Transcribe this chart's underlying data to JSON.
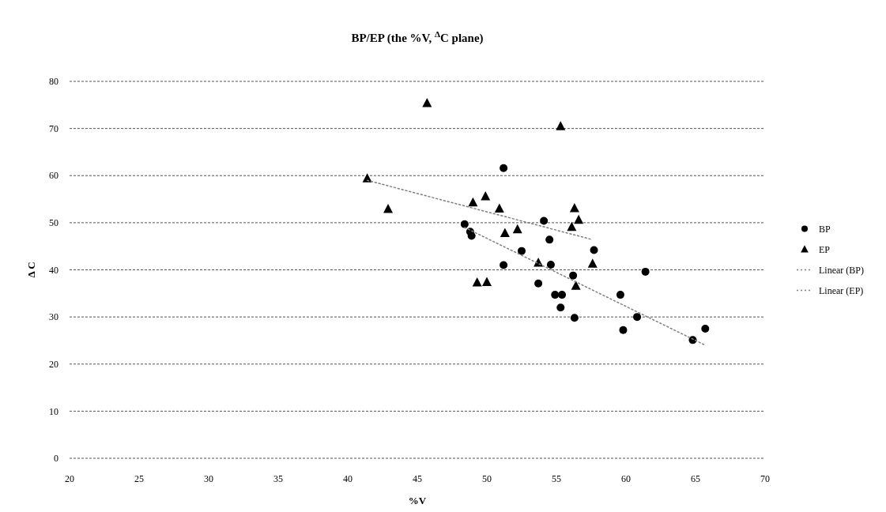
{
  "chart_data": {
    "type": "scatter",
    "title": "BP/EP (the %V, $^{Δ}$C plane)",
    "xlabel": "%V",
    "ylabel": "Δ C",
    "xlim": [
      20,
      70
    ],
    "xticks": [
      20,
      25,
      30,
      35,
      40,
      45,
      50,
      55,
      60,
      65,
      70
    ],
    "ylim": [
      0,
      80
    ],
    "yticks": [
      0,
      10,
      20,
      30,
      40,
      50,
      60,
      70,
      80
    ],
    "grid": "y",
    "legend": "right",
    "series": [
      {
        "name": "BP",
        "color": "#000000",
        "marker": "circle",
        "x": [
          51.2,
          48.4,
          48.8,
          48.9,
          54.1,
          54.5,
          52.5,
          57.7,
          54.6,
          51.2,
          61.4,
          56.2,
          53.7,
          54.9,
          55.4,
          59.6,
          55.3,
          56.3,
          60.8,
          59.8,
          65.7,
          64.8
        ],
        "values": [
          61.6,
          49.7,
          48.1,
          47.2,
          50.4,
          46.4,
          44.0,
          44.2,
          41.1,
          41.0,
          39.6,
          38.8,
          37.1,
          34.7,
          34.7,
          34.7,
          32.0,
          29.8,
          30.0,
          27.2,
          27.5,
          25.1
        ]
      },
      {
        "name": "EP",
        "color": "#000000",
        "marker": "triangle",
        "x": [
          45.7,
          55.3,
          41.4,
          42.9,
          49.9,
          49.0,
          50.9,
          56.3,
          52.2,
          51.3,
          56.1,
          56.6,
          53.7,
          57.6,
          56.4,
          49.3,
          50.0
        ],
        "values": [
          75.4,
          70.5,
          59.4,
          52.9,
          55.6,
          54.3,
          53.0,
          53.1,
          48.6,
          47.8,
          49.1,
          50.6,
          41.5,
          41.3,
          36.6,
          37.3,
          37.4
        ]
      },
      {
        "name": "Linear (BP)",
        "type": "line",
        "color": "#808080",
        "line_style": "dotted",
        "marker": "none",
        "x": [
          48.4,
          65.7
        ],
        "values": [
          49.0,
          24.0
        ]
      },
      {
        "name": "Linear (EP)",
        "type": "line",
        "color": "#808080",
        "line_style": "dotted",
        "marker": "none",
        "x": [
          41.4,
          57.6
        ],
        "values": [
          59.0,
          46.4
        ]
      }
    ]
  }
}
